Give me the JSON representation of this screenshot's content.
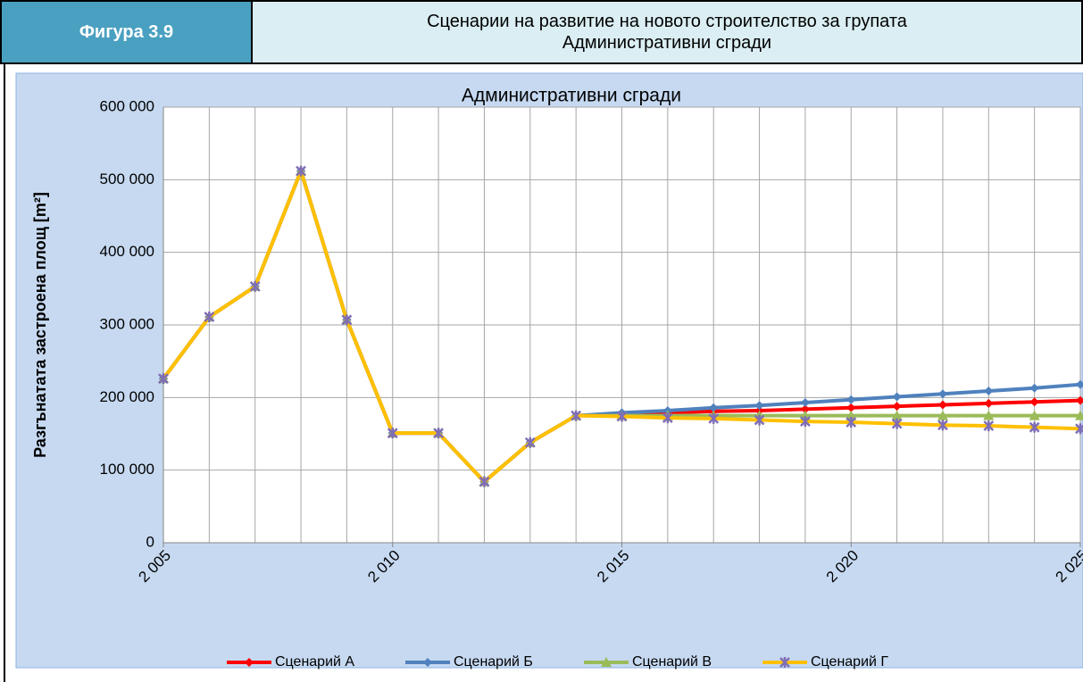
{
  "header": {
    "figure": "Фигура 3.9",
    "title": [
      "Сценарии на развитие на новото строителство за групата",
      "Административни сгради"
    ]
  },
  "chart_data": {
    "type": "line",
    "title": "Административни сгради",
    "y_label": "Разгънатата застроена площ [m²]",
    "x": [
      2005,
      2006,
      2007,
      2008,
      2009,
      2010,
      2011,
      2012,
      2013,
      2014,
      2015,
      2016,
      2017,
      2018,
      2019,
      2020,
      2021,
      2022,
      2023,
      2024,
      2025
    ],
    "xlim": [
      2005,
      2025
    ],
    "xticks": [
      {
        "value": 2005,
        "label": "2 005"
      },
      {
        "value": 2010,
        "label": "2 010"
      },
      {
        "value": 2015,
        "label": "2 015"
      },
      {
        "value": 2020,
        "label": "2 020"
      },
      {
        "value": 2025,
        "label": "2 025"
      }
    ],
    "ylim": [
      0,
      600000
    ],
    "yticks": [
      0,
      {
        "value": 100000,
        "label": "100 000"
      },
      {
        "value": 200000,
        "label": "200 000"
      },
      {
        "value": 300000,
        "label": "300 000"
      },
      {
        "value": 400000,
        "label": "400 000"
      },
      {
        "value": 500000,
        "label": "500 000"
      },
      {
        "value": 600000,
        "label": "600 000"
      }
    ],
    "grid": true,
    "legend": "bottom",
    "series": [
      {
        "name": "Сценарий А",
        "color": "#ff0000",
        "marker": "diamond",
        "values": [
          226000,
          311000,
          353000,
          512000,
          307000,
          151000,
          151000,
          84000,
          138000,
          175000,
          177000,
          179000,
          181000,
          182000,
          184000,
          186000,
          188000,
          190000,
          192000,
          194000,
          196000
        ]
      },
      {
        "name": "Сценарий Б",
        "color": "#4f81bd",
        "marker": "diamond",
        "values": [
          226000,
          311000,
          353000,
          512000,
          307000,
          151000,
          151000,
          84000,
          138000,
          175000,
          179000,
          182000,
          186000,
          189000,
          193000,
          197000,
          201000,
          205000,
          209000,
          213000,
          218000
        ]
      },
      {
        "name": "Сценарий В",
        "color": "#9bbb59",
        "marker": "triangle",
        "values": [
          226000,
          311000,
          353000,
          512000,
          307000,
          151000,
          151000,
          84000,
          138000,
          175000,
          175000,
          175000,
          175000,
          175000,
          175000,
          175000,
          175000,
          175000,
          175000,
          175000,
          175000
        ]
      },
      {
        "name": "Сценарий Г",
        "color": "#ffc000",
        "marker": "star",
        "values": [
          226000,
          311000,
          353000,
          512000,
          307000,
          151000,
          151000,
          84000,
          138000,
          175000,
          174000,
          172000,
          171000,
          169000,
          167000,
          166000,
          164000,
          162000,
          161000,
          159000,
          157000
        ]
      }
    ]
  }
}
